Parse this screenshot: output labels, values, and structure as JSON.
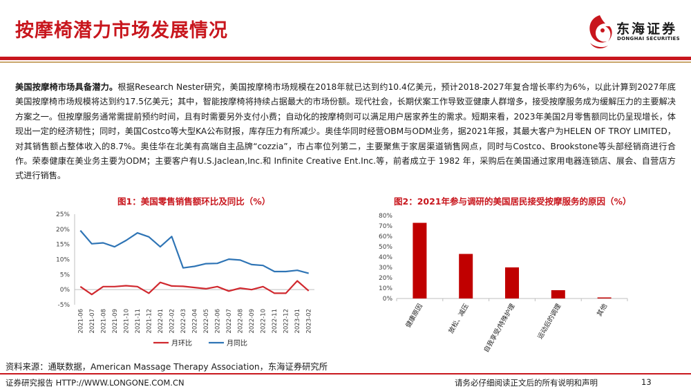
{
  "page": {
    "title": "按摩椅潜力市场发展情况",
    "logo_cn": "东海证券",
    "logo_en": "DONGHAI SECURITIES",
    "paragraph_lead": "美国按摩椅市场具备潜力。",
    "paragraph_body": "根据Research Nester研究，美国按摩椅市场规模在2018年就已达到约10.4亿美元，预计2018-2027年复合增长率约为6%，以此计算到2027年底美国按摩椅市场规模将达到约17.5亿美元；其中，智能按摩椅将持续占据最大的市场份额。现代社会，长期伏案工作导致亚健康人群增多，接受按摩服务成为缓解压力的主要解决方案之一。但按摩服务通常需提前预约时间，且有时需要另外支付小费；自动化的按摩椅则可以满足用户居家养生的需求。短期来看，2023年美国2月零售额同比仍呈现增长，体现出一定的经济韧性；同时，美国Costco等大型KA公布财报，库存压力有所减少。奥佳华同时经营OBM与ODM业务，据2021年报，其最大客户为HELEN OF TROY LIMITED，对其销售额占整体收入的8.7%。奥佳华在北美有高端自主品牌“cozzia”，市占率位列第二，主要聚焦于家居渠道销售网点，同时与Costco、Brookstone等头部经销商进行合作。荣泰健康在美业务主要为ODM；主要客户有U.S.Jaclean,Inc.和 Infinite Creative Ent.Inc.等，前者成立于 1982 年，采购后在美国通过家用电器连锁店、展会、自营店方式进行销售。",
    "source": "资料来源：通联数据，American Massage Therapy Association，东海证券研究所",
    "footer_left": "证券研究报告 HTTP://WWW.LONGONE.COM.CN",
    "footer_right": "请务必仔细阅读正文后的所有说明和声明",
    "page_number": "13",
    "colors": {
      "brand_red": "#c8161d",
      "gold": "#c9a66b",
      "mom_line": "#d0282e",
      "yoy_line": "#2e74b5",
      "bar": "#c00000"
    }
  },
  "chart_data": [
    {
      "type": "line",
      "title": "图1：美国零售销售额环比及同比（%）",
      "x": [
        "2021-06",
        "2021-07",
        "2021-08",
        "2021-09",
        "2021-10",
        "2021-11",
        "2021-12",
        "2022-01",
        "2022-02",
        "2022-03",
        "2022-04",
        "2022-05",
        "2022-06",
        "2022-07",
        "2022-08",
        "2022-09",
        "2022-10",
        "2022-11",
        "2022-12",
        "2023-01",
        "2023-02"
      ],
      "yticks": [
        "25%",
        "20%",
        "15%",
        "10%",
        "5%",
        "0%",
        "-5%"
      ],
      "ylim": [
        -5,
        25
      ],
      "series": [
        {
          "name": "月环比",
          "color": "#d0282e",
          "values": [
            1.0,
            -1.6,
            1.0,
            1.0,
            1.3,
            1.0,
            -1.2,
            2.4,
            1.2,
            1.1,
            0.7,
            0.3,
            1.0,
            -0.5,
            0.5,
            0.0,
            1.0,
            -1.2,
            -1.2,
            2.9,
            -0.4
          ]
        },
        {
          "name": "月同比",
          "color": "#2e74b5",
          "values": [
            19.6,
            15.2,
            15.5,
            14.2,
            16.3,
            18.8,
            17.5,
            14.2,
            17.6,
            7.2,
            7.7,
            8.6,
            8.7,
            10.1,
            9.8,
            8.3,
            8.0,
            6.0,
            6.0,
            6.4,
            5.4
          ]
        }
      ],
      "legend": "bottom",
      "grid": false
    },
    {
      "type": "bar",
      "title": "图2：2021年参与调研的美国居民接受按摩服务的原因（%）",
      "categories": [
        "健康原因",
        "放松、减压",
        "自我享受/特殊护理",
        "运动后的调理",
        "其他"
      ],
      "values": [
        73,
        43,
        30,
        8,
        1
      ],
      "yticks": [
        "80%",
        "70%",
        "60%",
        "50%",
        "40%",
        "30%",
        "20%",
        "10%",
        "0%"
      ],
      "ylim": [
        0,
        80
      ],
      "color": "#c00000",
      "grid": false
    }
  ]
}
